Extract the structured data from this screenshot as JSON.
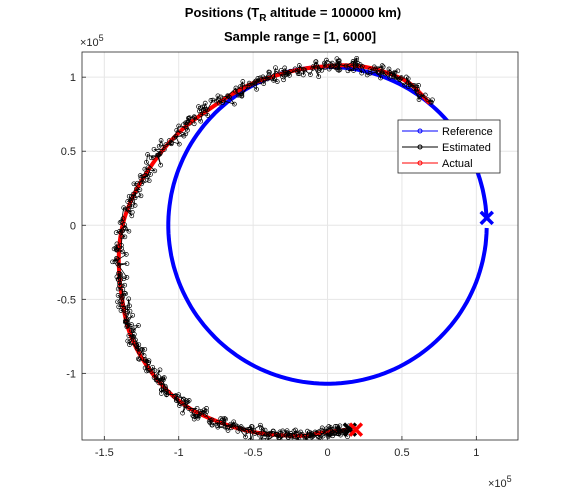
{
  "chart_data": {
    "type": "line",
    "title_main": "Positions (T",
    "title_sub": "R",
    "title_rest": " altitude = 100000 km)",
    "subtitle": "Sample range = [1, 6000]",
    "xlim": [
      -165000,
      128000
    ],
    "ylim": [
      -145000,
      117000
    ],
    "x_ticks": [
      -150000,
      -100000,
      -50000,
      0,
      50000,
      100000
    ],
    "x_tick_labels": [
      "-1.5",
      "-1",
      "-0.5",
      "0",
      "0.5",
      "1"
    ],
    "y_ticks": [
      -100000,
      -50000,
      0,
      50000,
      100000
    ],
    "y_tick_labels": [
      "-1",
      "-0.5",
      "0",
      "0.5",
      "1"
    ],
    "x_exponent": "×10",
    "x_exponent_power": "5",
    "y_exponent": "×10",
    "y_exponent_power": "5",
    "grid": true,
    "legend_position": "right-upper",
    "legend": [
      "Reference",
      "Estimated",
      "Actual"
    ],
    "colors": {
      "reference": "#0000ff",
      "estimated": "#000000",
      "actual": "#ff0000"
    },
    "reference": {
      "center": [
        0,
        0
      ],
      "radius": 107000,
      "start_angle_deg": 3,
      "end_angle_deg": 360,
      "direction": "counterclockwise",
      "start_point": [
        107000,
        5000
      ]
    },
    "actual": {
      "x": [
        68000,
        55000,
        40000,
        25000,
        10000,
        -5000,
        -20000,
        -35000,
        -50000,
        -65000,
        -80000,
        -95000,
        -108000,
        -120000,
        -130000,
        -137000,
        -140000,
        -140000,
        -138000,
        -135000,
        -130000,
        -122000,
        -113000,
        -103000,
        -92000,
        -80000,
        -67000,
        -53000,
        -40000,
        -27000,
        -15000,
        -3000,
        5000,
        15000
      ],
      "y": [
        83000,
        96000,
        103000,
        107000,
        108000,
        107000,
        105000,
        101000,
        96000,
        88000,
        78000,
        67000,
        54000,
        38000,
        21000,
        3000,
        -15000,
        -33000,
        -50000,
        -66000,
        -80000,
        -94000,
        -106000,
        -116000,
        -124000,
        -130000,
        -135000,
        -139000,
        -141000,
        -142000,
        -142000,
        -140000,
        -139000,
        -138000
      ]
    },
    "actual_end_point": [
      15000,
      -138000
    ],
    "estimated_noise_amplitude": 3500,
    "estimated_sample_count": 520
  }
}
